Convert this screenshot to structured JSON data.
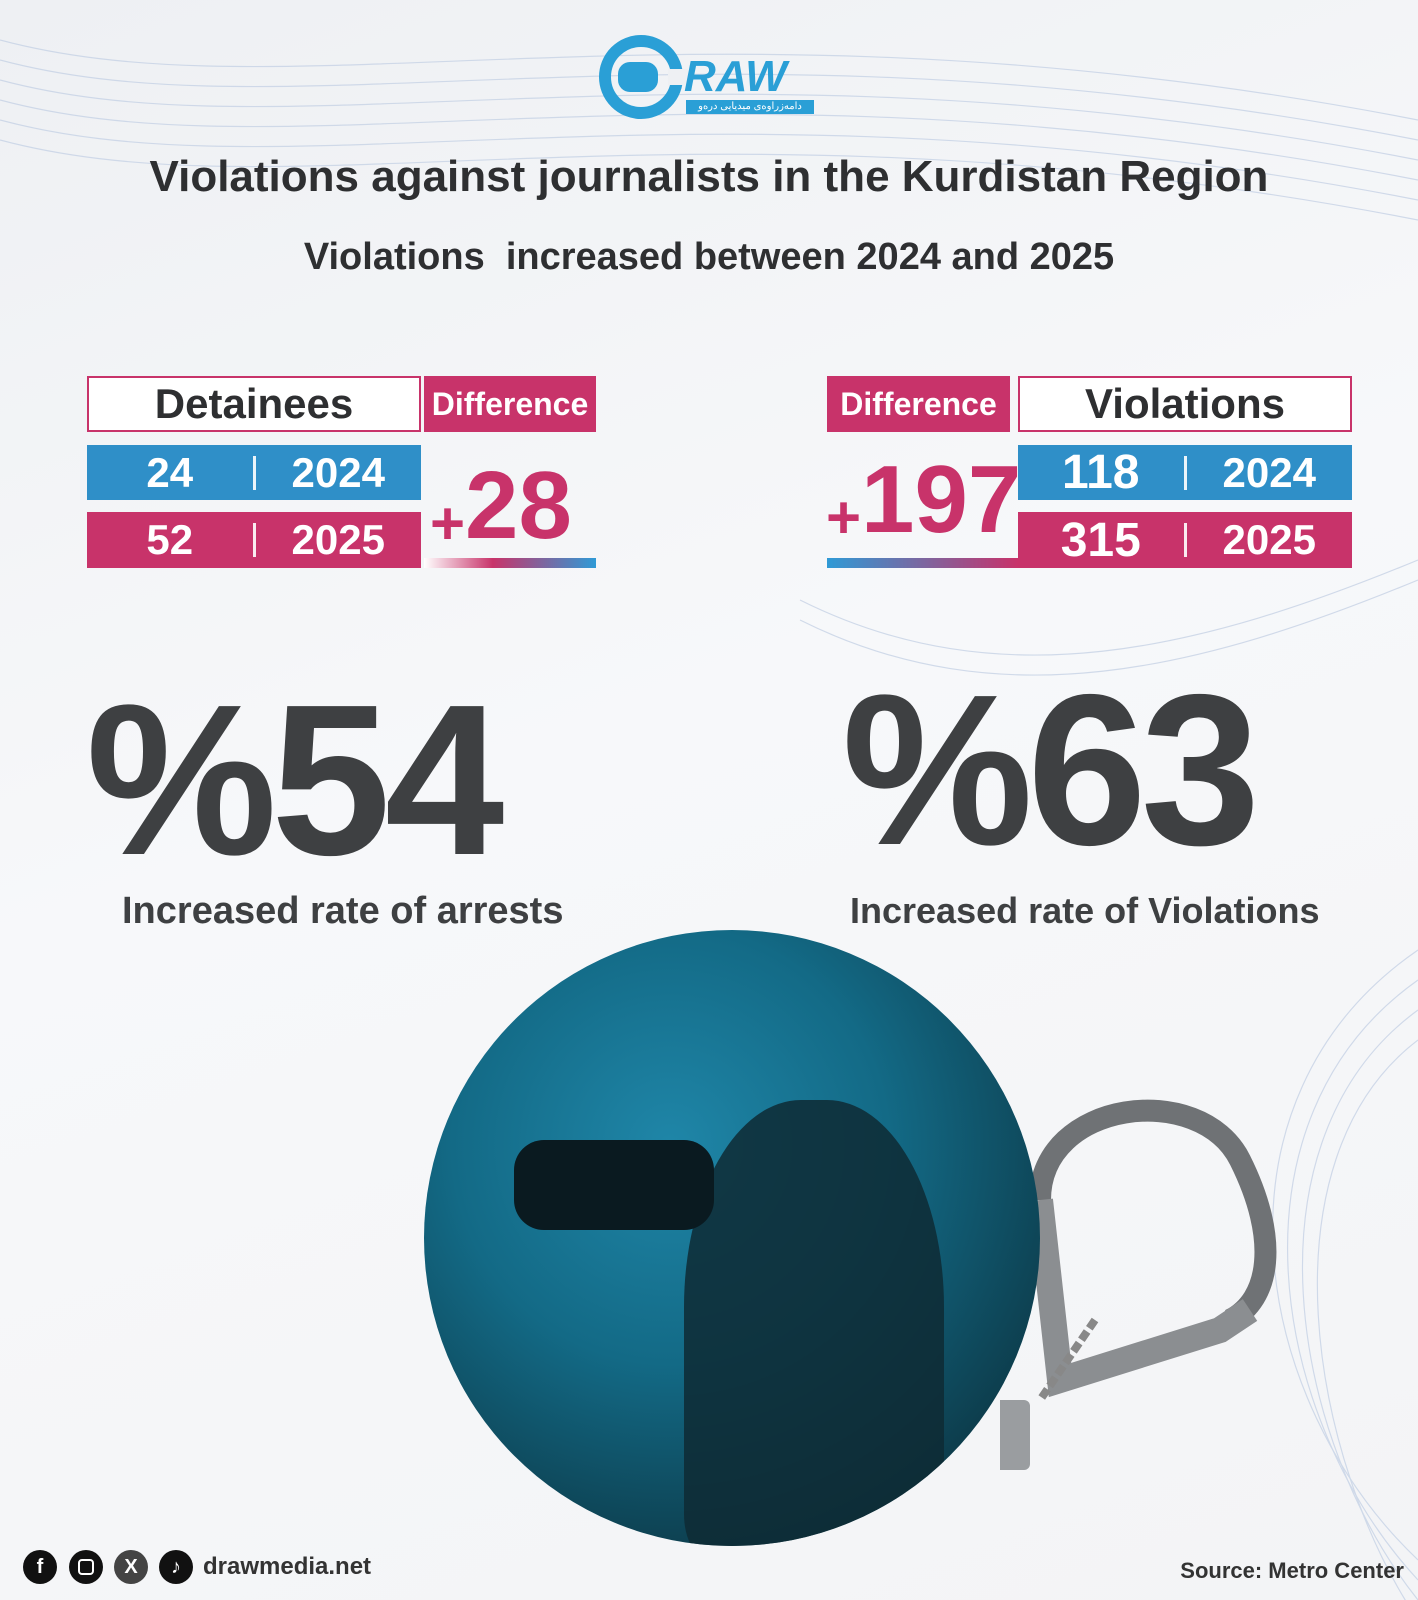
{
  "logo": {
    "text": "RAW",
    "subtitle": "دامەزراوەی میدیایی درەو",
    "color": "#2a9fd6"
  },
  "title": "Violations against journalists in the Kurdistan Region",
  "subtitle": "Violations  increased between 2024 and 2025",
  "colors": {
    "blue": "#2f8fc8",
    "pink": "#c8336a",
    "dark": "#3e4042"
  },
  "detainees": {
    "label": "Detainees",
    "difference_label": "Difference",
    "rows": [
      {
        "value": "24",
        "year": "2024"
      },
      {
        "value": "52",
        "year": "2025"
      }
    ],
    "difference": "28",
    "plus": "+",
    "percent": "%54",
    "caption": "Increased rate of arrests"
  },
  "violations": {
    "label": "Violations",
    "difference_label": "Difference",
    "rows": [
      {
        "value": "118",
        "year": "2024"
      },
      {
        "value": "315",
        "year": "2025"
      }
    ],
    "difference": "197",
    "plus": "+",
    "percent": "%63",
    "caption": "Increased rate of Violations"
  },
  "footer": {
    "social_icons": [
      "facebook-icon",
      "instagram-icon",
      "x-icon",
      "tiktok-icon"
    ],
    "website": "drawmedia.net",
    "source": "Source: Metro Center"
  }
}
